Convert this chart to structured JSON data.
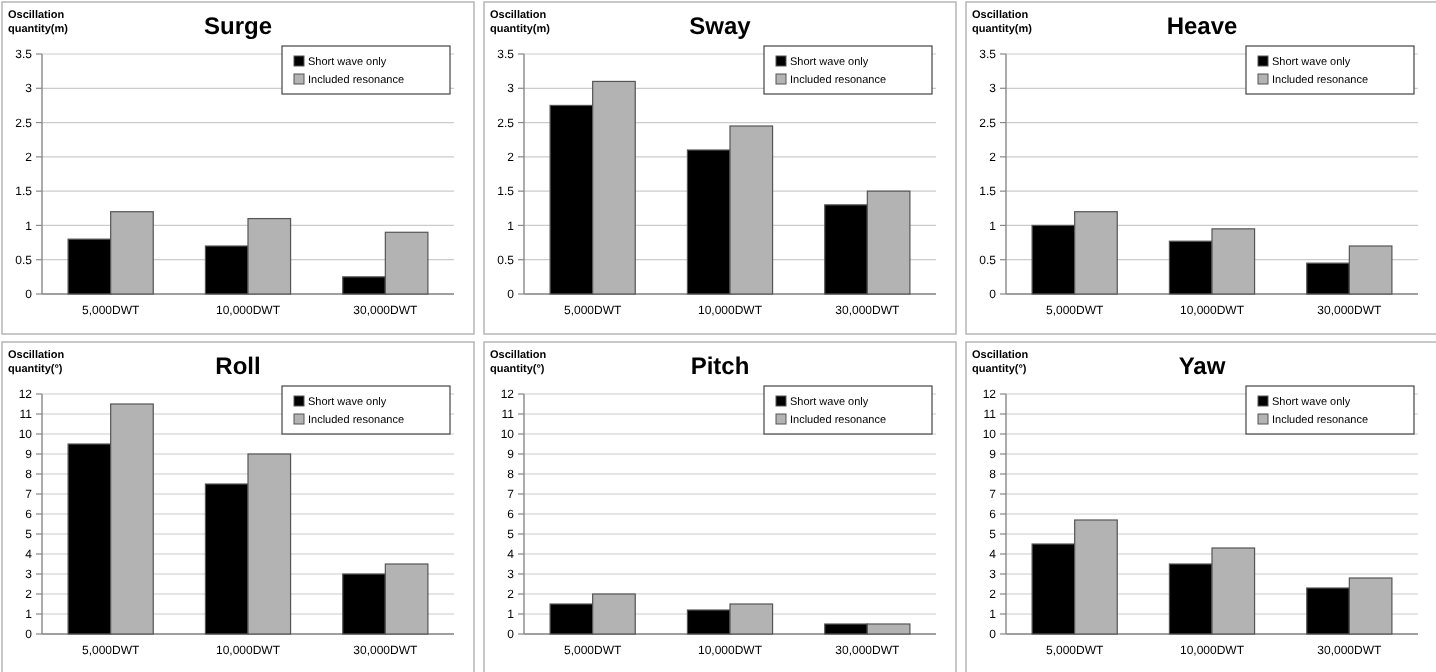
{
  "chart_data": [
    {
      "type": "bar",
      "title": "Surge",
      "ylabel": "Oscillation quantity(m)",
      "categories": [
        "5,000DWT",
        "10,000DWT",
        "30,000DWT"
      ],
      "series": [
        {
          "name": "Short wave only",
          "color": "#000000",
          "values": [
            0.8,
            0.7,
            0.25
          ]
        },
        {
          "name": "Included resonance",
          "color": "#b3b3b3",
          "values": [
            1.2,
            1.1,
            0.9
          ]
        }
      ],
      "ylim": [
        0,
        3.5
      ],
      "yticks": [
        0,
        0.5,
        1,
        1.5,
        2,
        2.5,
        3,
        3.5
      ],
      "grid": "y",
      "legend": "top right"
    },
    {
      "type": "bar",
      "title": "Sway",
      "ylabel": "Oscillation quantity(m)",
      "categories": [
        "5,000DWT",
        "10,000DWT",
        "30,000DWT"
      ],
      "series": [
        {
          "name": "Short wave only",
          "color": "#000000",
          "values": [
            2.75,
            2.1,
            1.3
          ]
        },
        {
          "name": "Included resonance",
          "color": "#b3b3b3",
          "values": [
            3.1,
            2.45,
            1.5
          ]
        }
      ],
      "ylim": [
        0,
        3.5
      ],
      "yticks": [
        0,
        0.5,
        1,
        1.5,
        2,
        2.5,
        3,
        3.5
      ],
      "grid": "y",
      "legend": "top right"
    },
    {
      "type": "bar",
      "title": "Heave",
      "ylabel": "Oscillation quantity(m)",
      "categories": [
        "5,000DWT",
        "10,000DWT",
        "30,000DWT"
      ],
      "series": [
        {
          "name": "Short wave only",
          "color": "#000000",
          "values": [
            1.0,
            0.77,
            0.45
          ]
        },
        {
          "name": "Included resonance",
          "color": "#b3b3b3",
          "values": [
            1.2,
            0.95,
            0.7
          ]
        }
      ],
      "ylim": [
        0,
        3.5
      ],
      "yticks": [
        0,
        0.5,
        1,
        1.5,
        2,
        2.5,
        3,
        3.5
      ],
      "grid": "y",
      "legend": "top right"
    },
    {
      "type": "bar",
      "title": "Roll",
      "ylabel": "Oscillation quantity(°)",
      "categories": [
        "5,000DWT",
        "10,000DWT",
        "30,000DWT"
      ],
      "series": [
        {
          "name": "Short wave only",
          "color": "#000000",
          "values": [
            9.5,
            7.5,
            3.0
          ]
        },
        {
          "name": "Included resonance",
          "color": "#b3b3b3",
          "values": [
            11.5,
            9.0,
            3.5
          ]
        }
      ],
      "ylim": [
        0,
        12
      ],
      "yticks": [
        0,
        1,
        2,
        3,
        4,
        5,
        6,
        7,
        8,
        9,
        10,
        11,
        12
      ],
      "grid": "y",
      "legend": "top right"
    },
    {
      "type": "bar",
      "title": "Pitch",
      "ylabel": "Oscillation quantity(°)",
      "categories": [
        "5,000DWT",
        "10,000DWT",
        "30,000DWT"
      ],
      "series": [
        {
          "name": "Short wave only",
          "color": "#000000",
          "values": [
            1.5,
            1.2,
            0.5
          ]
        },
        {
          "name": "Included resonance",
          "color": "#b3b3b3",
          "values": [
            2.0,
            1.5,
            0.5
          ]
        }
      ],
      "ylim": [
        0,
        12
      ],
      "yticks": [
        0,
        1,
        2,
        3,
        4,
        5,
        6,
        7,
        8,
        9,
        10,
        11,
        12
      ],
      "grid": "y",
      "legend": "top right"
    },
    {
      "type": "bar",
      "title": "Yaw",
      "ylabel": "Oscillation quantity(°)",
      "categories": [
        "5,000DWT",
        "10,000DWT",
        "30,000DWT"
      ],
      "series": [
        {
          "name": "Short wave only",
          "color": "#000000",
          "values": [
            4.5,
            3.5,
            2.3
          ]
        },
        {
          "name": "Included resonance",
          "color": "#b3b3b3",
          "values": [
            5.7,
            4.3,
            2.8
          ]
        }
      ],
      "ylim": [
        0,
        12
      ],
      "yticks": [
        0,
        1,
        2,
        3,
        4,
        5,
        6,
        7,
        8,
        9,
        10,
        11,
        12
      ],
      "grid": "y",
      "legend": "top right"
    }
  ]
}
